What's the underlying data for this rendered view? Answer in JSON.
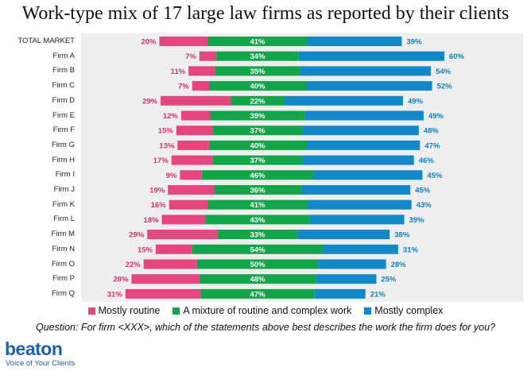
{
  "title": "Work-type mix of 17 large law firms as reported by their clients",
  "question": "Question: For firm <XXX>, which of the statements above best describes the work the firm does for you?",
  "brand": {
    "name": "beaton",
    "tagline": "Voice of Your Clients"
  },
  "colors": {
    "routine": "#e5467f",
    "mixture": "#12a54a",
    "complex": "#1388c9",
    "routine_label": "#d6336e",
    "complex_label": "#1280c0",
    "plot_bg": "#eeeeee"
  },
  "legend": [
    {
      "key": "routine",
      "label": "Mostly routine"
    },
    {
      "key": "mixture",
      "label": "A mixture of routine and complex work"
    },
    {
      "key": "complex",
      "label": "Mostly complex"
    }
  ],
  "chart_data": {
    "type": "bar",
    "orientation": "horizontal-diverging-stacked",
    "title": "Work-type mix of 17 large law firms as reported by their clients",
    "categories": [
      "TOTAL MARKET",
      "Firm A",
      "Firm B",
      "Firm C",
      "Firm D",
      "Firm E",
      "Firm F",
      "Firm G",
      "Firm H",
      "Firm I",
      "Firm J",
      "Firm K",
      "Firm L",
      "Firm M",
      "Firm N",
      "Firm O",
      "Firm P",
      "Firm Q"
    ],
    "series": [
      {
        "name": "Mostly routine",
        "values": [
          20,
          7,
          11,
          7,
          29,
          12,
          15,
          13,
          17,
          9,
          19,
          16,
          18,
          29,
          15,
          22,
          28,
          31
        ]
      },
      {
        "name": "A mixture of routine and complex work",
        "values": [
          41,
          34,
          35,
          40,
          22,
          39,
          37,
          40,
          37,
          46,
          36,
          41,
          43,
          33,
          54,
          50,
          48,
          47
        ]
      },
      {
        "name": "Mostly complex",
        "values": [
          39,
          60,
          54,
          52,
          49,
          49,
          48,
          47,
          46,
          45,
          45,
          43,
          39,
          38,
          31,
          28,
          25,
          21
        ]
      }
    ],
    "value_suffix": "%",
    "xlabel": "",
    "ylabel": ""
  }
}
